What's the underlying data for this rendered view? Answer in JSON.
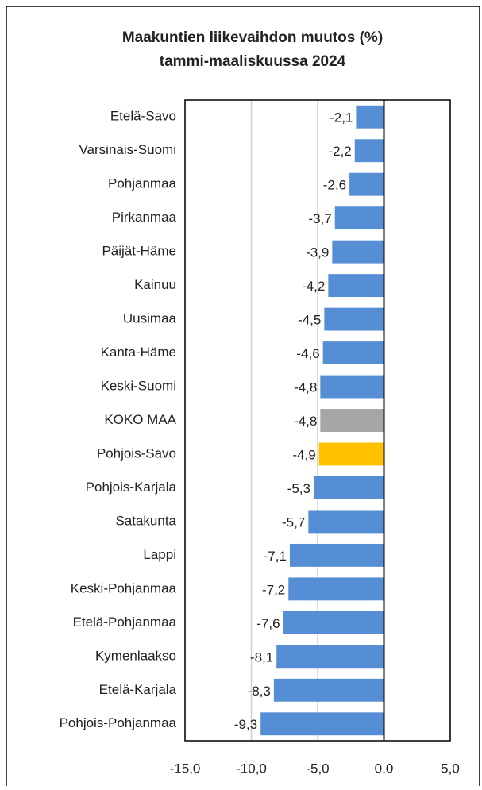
{
  "chart_data": {
    "type": "bar",
    "orientation": "horizontal",
    "title": [
      "Maakuntien liikevaihdon muutos (%)",
      "tammi-maaliskuussa 2024"
    ],
    "categories": [
      "Etelä-Savo",
      "Varsinais-Suomi",
      "Pohjanmaa",
      "Pirkanmaa",
      "Päijät-Häme",
      "Kainuu",
      "Uusimaa",
      "Kanta-Häme",
      "Keski-Suomi",
      "KOKO MAA",
      "Pohjois-Savo",
      "Pohjois-Karjala",
      "Satakunta",
      "Lappi",
      "Keski-Pohjanmaa",
      "Etelä-Pohjanmaa",
      "Kymenlaakso",
      "Etelä-Karjala",
      "Pohjois-Pohjanmaa"
    ],
    "values": [
      -2.1,
      -2.2,
      -2.6,
      -3.7,
      -3.9,
      -4.2,
      -4.5,
      -4.6,
      -4.8,
      -4.8,
      -4.9,
      -5.3,
      -5.7,
      -7.1,
      -7.2,
      -7.6,
      -8.1,
      -8.3,
      -9.3
    ],
    "value_labels": [
      "-2,1",
      "-2,2",
      "-2,6",
      "-3,7",
      "-3,9",
      "-4,2",
      "-4,5",
      "-4,6",
      "-4,8",
      "-4,8",
      "-4,9",
      "-5,3",
      "-5,7",
      "-7,1",
      "-7,2",
      "-7,6",
      "-8,1",
      "-8,3",
      "-9,3"
    ],
    "colors": [
      "#558ed5",
      "#558ed5",
      "#558ed5",
      "#558ed5",
      "#558ed5",
      "#558ed5",
      "#558ed5",
      "#558ed5",
      "#558ed5",
      "#a6a6a6",
      "#ffc000",
      "#558ed5",
      "#558ed5",
      "#558ed5",
      "#558ed5",
      "#558ed5",
      "#558ed5",
      "#558ed5",
      "#558ed5"
    ],
    "xlim": [
      -15,
      5
    ],
    "xticks": [
      {
        "value": -15,
        "label": "-15,0"
      },
      {
        "value": -10,
        "label": "-10,0"
      },
      {
        "value": -5,
        "label": "-5,0"
      },
      {
        "value": 0,
        "label": "0,0"
      },
      {
        "value": 5,
        "label": "5,0"
      }
    ],
    "grid": true
  }
}
